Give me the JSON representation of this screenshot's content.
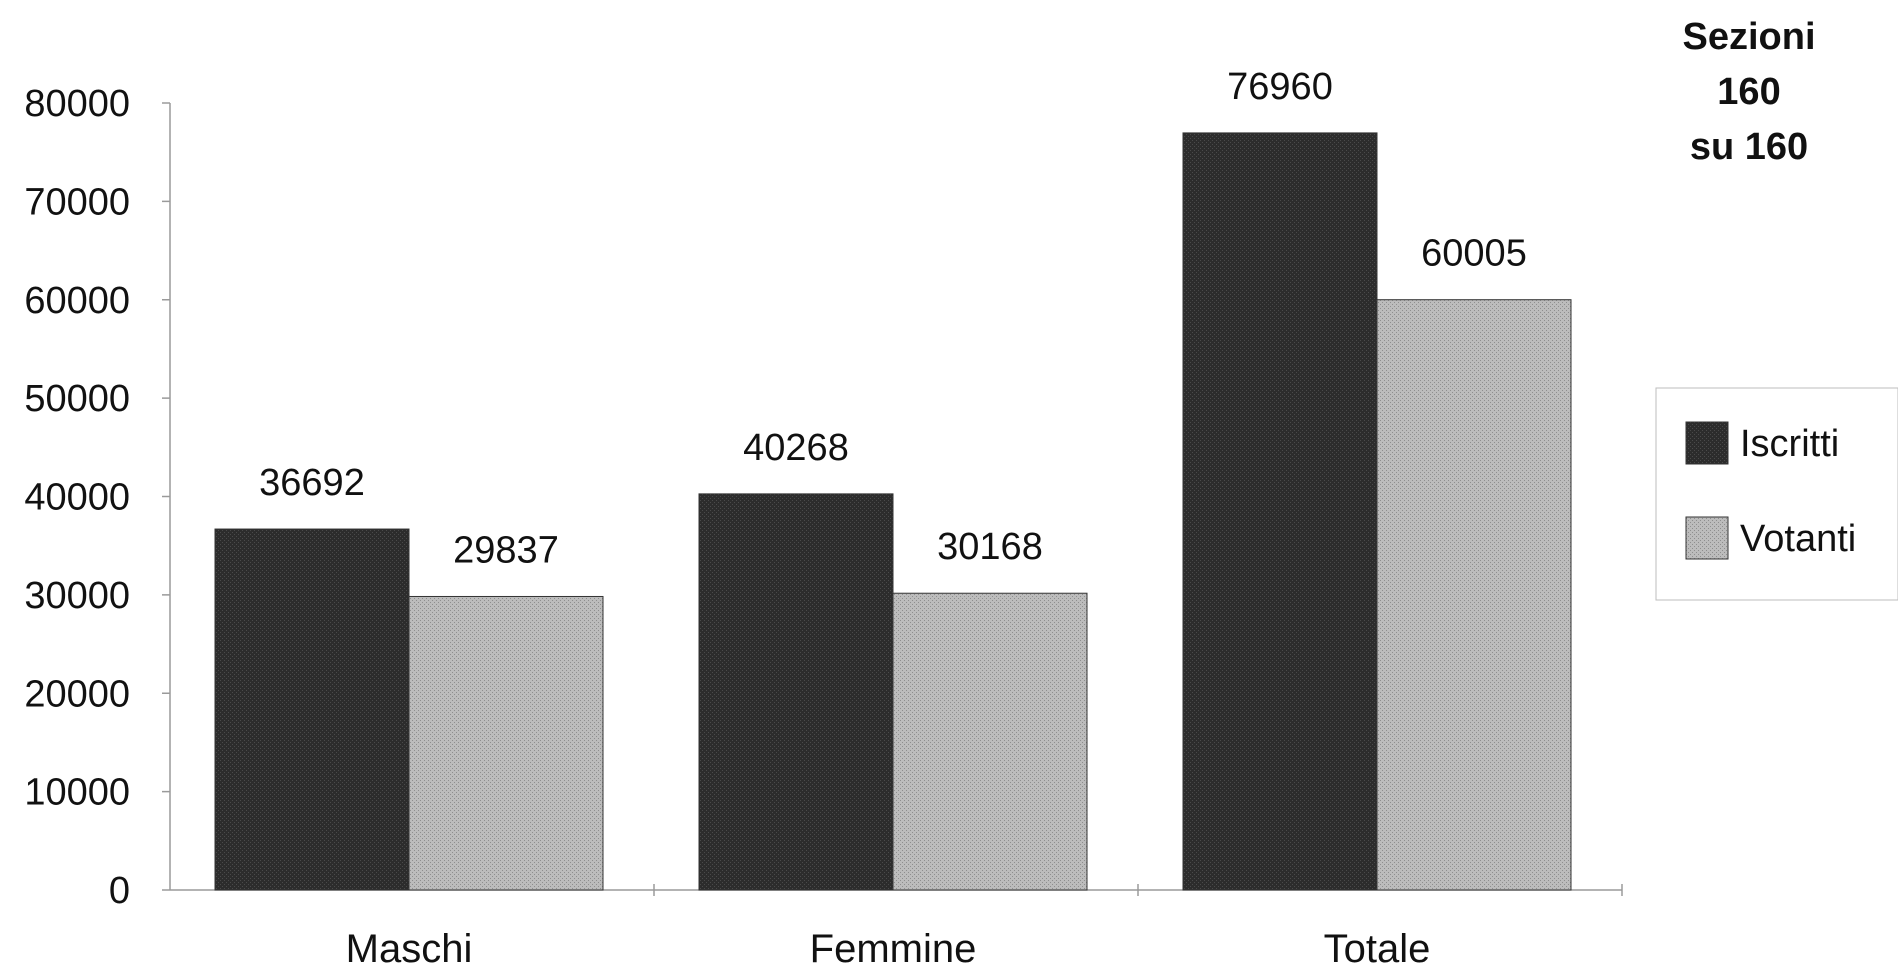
{
  "corner_note": {
    "line1": "Sezioni",
    "line2": "160",
    "line3": "su 160"
  },
  "colors": {
    "iscritti": "#2a2a2a",
    "votanti": "#b3b3b3",
    "axis": "#9a9a9a",
    "text": "#111111"
  },
  "chart_data": {
    "type": "bar",
    "title": "",
    "xlabel": "",
    "ylabel": "",
    "categories": [
      "Maschi",
      "Femmine",
      "Totale"
    ],
    "series": [
      {
        "name": "Iscritti",
        "values": [
          36692,
          40268,
          76960
        ]
      },
      {
        "name": "Votanti",
        "values": [
          29837,
          30168,
          60005
        ]
      }
    ],
    "ylim": [
      0,
      80000
    ],
    "yticks": [
      "0",
      "10000",
      "20000",
      "30000",
      "40000",
      "50000",
      "60000",
      "70000",
      "80000"
    ],
    "legend": {
      "position": "right",
      "entries": [
        "Iscritti",
        "Votanti"
      ]
    },
    "grid": false,
    "data_labels": true
  }
}
